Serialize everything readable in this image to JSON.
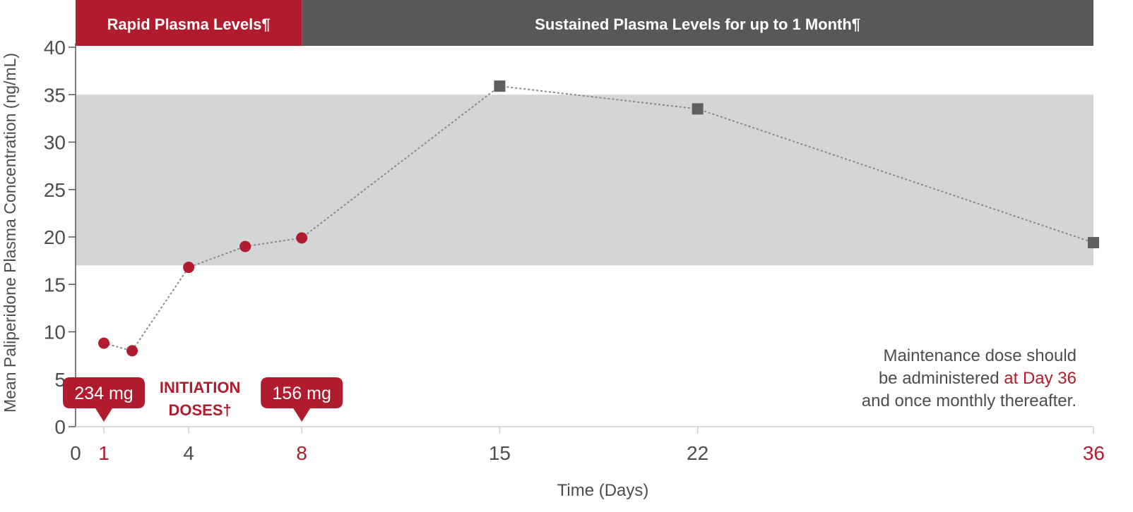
{
  "colors": {
    "red": "#b01c2e",
    "dark": "#58585a",
    "band": "#d4d5d7",
    "axis": "#555555",
    "tick": "#4d4d4d",
    "grid": "#cfcfcf",
    "line": "#8a8a8a",
    "square": "#5f5f5f"
  },
  "header": {
    "rapid": "Rapid Plasma Levels¶",
    "sustained": "Sustained Plasma Levels for up to 1 Month¶"
  },
  "callouts": {
    "dose1": "234 mg",
    "dose2": "156 mg",
    "initiation_line1": "INITIATION",
    "initiation_line2": "DOSES†"
  },
  "note": {
    "line1": "Maintenance dose should",
    "line2_prefix": "be administered ",
    "line2_highlight": "at Day 36",
    "line3": "and once monthly thereafter."
  },
  "chart_data": {
    "type": "line",
    "xlabel": "Time (Days)",
    "ylabel": "Mean Paliperidone Plasma Concentration (ng/mL)",
    "xlim": [
      0,
      36
    ],
    "ylim": [
      0,
      40
    ],
    "x_ticks": [
      0,
      1,
      4,
      8,
      15,
      22,
      36
    ],
    "x_ticks_highlighted": [
      1,
      8,
      36
    ],
    "y_ticks": [
      0,
      5,
      10,
      15,
      20,
      25,
      30,
      35,
      40
    ],
    "shaded_band": [
      17,
      35
    ],
    "series": [
      {
        "marker": "circle",
        "color": "#b01c2e",
        "points": [
          {
            "x": 1,
            "y": 8.8
          },
          {
            "x": 2,
            "y": 8.0
          },
          {
            "x": 4,
            "y": 16.8
          },
          {
            "x": 6,
            "y": 19.0
          },
          {
            "x": 8,
            "y": 19.9
          }
        ]
      },
      {
        "marker": "square",
        "color": "#5f5f5f",
        "points": [
          {
            "x": 15,
            "y": 35.9
          },
          {
            "x": 22,
            "y": 33.5
          },
          {
            "x": 36,
            "y": 19.4
          }
        ]
      }
    ]
  }
}
